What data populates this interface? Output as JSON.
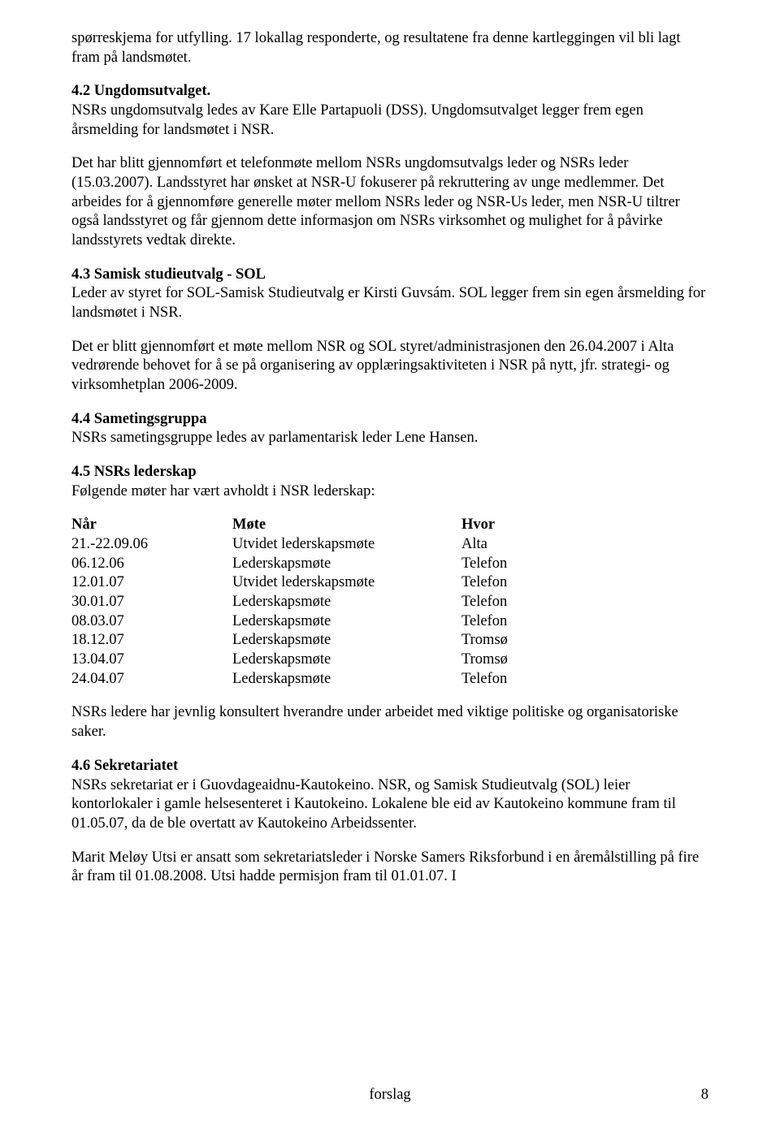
{
  "p_intro": "spørreskjema for utfylling. 17 lokallag responderte, og resultatene fra denne kartleggingen vil bli lagt fram på landsmøtet.",
  "s42_title": "4.2 Ungdomsutvalget.",
  "s42_p1": "NSRs ungdomsutvalg ledes av Kare Elle Partapuoli (DSS). Ungdomsutvalget legger frem egen årsmelding for landsmøtet i NSR.",
  "s42_p2": "Det har blitt gjennomført et telefonmøte mellom NSRs ungdomsutvalgs leder og NSRs leder (15.03.2007). Landsstyret har ønsket at NSR-U fokuserer på rekruttering av unge medlemmer. Det arbeides for å gjennomføre generelle møter mellom NSRs leder og NSR-Us leder, men NSR-U tiltrer også landsstyret og får gjennom dette informasjon om NSRs virksomhet og mulighet for å påvirke landsstyrets vedtak direkte.",
  "s43_title": "4.3 Samisk studieutvalg - SOL",
  "s43_p1": "Leder av styret for SOL-Samisk Studieutvalg er Kirsti Guvsám. SOL legger frem sin egen årsmelding for landsmøtet i NSR.",
  "s43_p2": "Det er blitt gjennomført et møte mellom NSR og SOL styret/administrasjonen den 26.04.2007 i Alta vedrørende behovet for å se på organisering av opplæringsaktiviteten i NSR på nytt, jfr. strategi- og virksomhetplan 2006-2009.",
  "s44_title": "4.4 Sametingsgruppa",
  "s44_p1": "NSRs sametingsgruppe ledes av parlamentarisk leder Lene Hansen.",
  "s45_title": "4.5 NSRs lederskap",
  "s45_p1": "Følgende møter har vært avholdt i NSR lederskap:",
  "meetings": {
    "headers": {
      "c1": "Når",
      "c2": "Møte",
      "c3": "Hvor"
    },
    "rows": [
      {
        "c1": "21.-22.09.06",
        "c2": "Utvidet lederskapsmøte",
        "c3": "Alta"
      },
      {
        "c1": "06.12.06",
        "c2": "Lederskapsmøte",
        "c3": "Telefon"
      },
      {
        "c1": "12.01.07",
        "c2": "Utvidet lederskapsmøte",
        "c3": "Telefon"
      },
      {
        "c1": "30.01.07",
        "c2": "Lederskapsmøte",
        "c3": "Telefon"
      },
      {
        "c1": "08.03.07",
        "c2": "Lederskapsmøte",
        "c3": "Telefon"
      },
      {
        "c1": "18.12.07",
        "c2": "Lederskapsmøte",
        "c3": "Tromsø"
      },
      {
        "c1": "13.04.07",
        "c2": "Lederskapsmøte",
        "c3": "Tromsø"
      },
      {
        "c1": "24.04.07",
        "c2": "Lederskapsmøte",
        "c3": "Telefon"
      }
    ]
  },
  "s45_p2": "NSRs ledere har jevnlig konsultert hverandre under arbeidet med viktige politiske og organisatoriske saker.",
  "s46_title": "4.6 Sekretariatet",
  "s46_p1": "NSRs sekretariat er i Guovdageaidnu-Kautokeino. NSR, og Samisk Studieutvalg (SOL) leier kontorlokaler i gamle helsesenteret i Kautokeino. Lokalene ble eid av Kautokeino kommune fram til 01.05.07, da de ble overtatt av Kautokeino Arbeidssenter.",
  "s46_p2": "Marit Meløy Utsi er ansatt som sekretariatsleder i Norske Samers Riksforbund i en åremålstilling på fire år fram til 01.08.2008. Utsi hadde permisjon fram til 01.01.07. I",
  "footer_center": "forslag",
  "footer_page": "8"
}
